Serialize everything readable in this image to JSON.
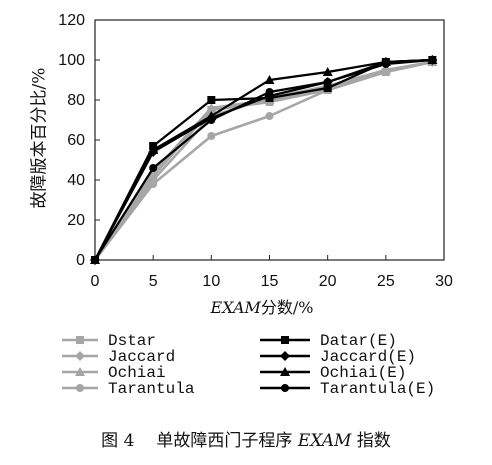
{
  "chart_data": {
    "type": "line",
    "x": [
      0,
      5,
      10,
      15,
      20,
      25,
      29
    ],
    "xticks": [
      "0",
      "5",
      "10",
      "15",
      "20",
      "25",
      "30"
    ],
    "yticks": [
      "0",
      "20",
      "40",
      "60",
      "80",
      "100",
      "120"
    ],
    "xlim": [
      0,
      30
    ],
    "ylim": [
      0,
      120
    ],
    "xlabel_italic": "EXAM",
    "xlabel_rest": "分数/%",
    "ylabel": "故障版本百分比/%",
    "grid": false,
    "legend_position": "bottom",
    "series": [
      {
        "name": "Dstar",
        "color": "#a6a6a6",
        "marker": "square",
        "values": [
          0,
          42,
          75,
          79,
          85,
          94,
          99
        ]
      },
      {
        "name": "Jaccard",
        "color": "#a6a6a6",
        "marker": "diamond",
        "values": [
          0,
          40,
          72,
          81,
          87,
          95,
          99
        ]
      },
      {
        "name": "Ochiai",
        "color": "#a6a6a6",
        "marker": "triangle",
        "values": [
          0,
          44,
          76,
          80,
          86,
          95,
          99
        ]
      },
      {
        "name": "Tarantula",
        "color": "#a6a6a6",
        "marker": "circle",
        "values": [
          0,
          38,
          62,
          72,
          85,
          94,
          99
        ]
      },
      {
        "name": "Datar(E)",
        "color": "#000000",
        "marker": "square",
        "values": [
          0,
          57,
          80,
          81,
          86,
          99,
          100
        ]
      },
      {
        "name": "Jaccard(E)",
        "color": "#000000",
        "marker": "diamond",
        "values": [
          0,
          54,
          71,
          82,
          89,
          99,
          100
        ]
      },
      {
        "name": "Ochiai(E)",
        "color": "#000000",
        "marker": "triangle",
        "values": [
          0,
          55,
          72,
          90,
          94,
          99,
          100
        ]
      },
      {
        "name": "Tarantula(E)",
        "color": "#000000",
        "marker": "circle",
        "values": [
          0,
          46,
          70,
          84,
          89,
          98,
          100
        ]
      }
    ]
  },
  "caption": {
    "figure_no": "图 4",
    "text_before": "单故障西门子程序 ",
    "text_italic": "EXAM",
    "text_after": " 指数"
  }
}
